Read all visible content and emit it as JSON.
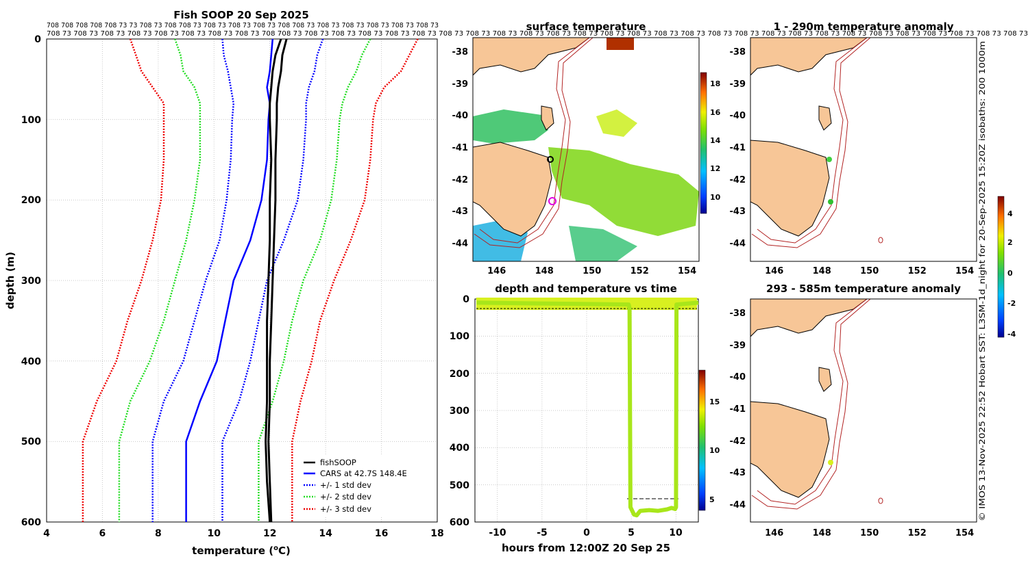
{
  "colors": {
    "land": "#f7c697",
    "coast": "#000000",
    "isobath": "#b22222",
    "grid": "#c8c8c8",
    "cars": "#0000ff",
    "std1": "#0000ff",
    "std2": "#22dd22",
    "std3": "#ee0000",
    "fish": "#000000",
    "dtline": "#a8e61a"
  },
  "top_strip": {
    "row1": "708 708 708 708 708 73 73 708 73 708 708 73 708 73 708 73 708 73 708 708 73 708 73 708 73 708 73 708 73 708 73",
    "row2": "708 73 708 73 708 73 708 73 708 73 708 73 708 73 708 73 708 708 73 708 73 708 73 708 73 708 73 708 73 708 73 708 73 708 73 708 73 708 73 708 73 708 73 708 73 708 73 708 73 708 73 708 73 708 73 708 73 708 73 708 73 708 73 708 73 708 73 708 73 708 73 708 73"
  },
  "side_text": "© IMOS 13-Nov-2025 22:52 Hobart SST: L3SM-1d_night for 20-Sep-2025 15:20Z isobaths: 200  1000m",
  "chart_data": [
    {
      "id": "profile",
      "type": "line",
      "title": "Fish SOOP 20 Sep 2025",
      "xlabel": "temperature (",
      "xlabel_sup": "o",
      "xlabel_end": "C)",
      "ylabel": "depth (m)",
      "xlim": [
        4,
        18
      ],
      "ylim": [
        600,
        0
      ],
      "xticks": [
        "4",
        "6",
        "8",
        "10",
        "12",
        "14",
        "16",
        "18"
      ],
      "yticks": [
        "0",
        "100",
        "200",
        "300",
        "400",
        "500",
        "600"
      ],
      "legend": [
        "fishSOOP",
        "CARS at 42.7S 148.4E",
        "+/- 1 std dev",
        "+/- 2 std dev",
        "+/- 3 std dev"
      ],
      "depths": [
        0,
        20,
        40,
        60,
        80,
        100,
        150,
        200,
        250,
        300,
        350,
        400,
        450,
        500,
        550,
        600
      ],
      "series": [
        {
          "name": "CARS at 42.7S 148.4E",
          "style": "cars",
          "values": [
            12.1,
            12.05,
            12.0,
            11.9,
            12.0,
            11.95,
            11.9,
            11.7,
            11.3,
            10.7,
            10.4,
            10.1,
            9.5,
            9.0,
            9.0,
            9.0
          ]
        },
        {
          "name": "-1 std",
          "style": "std1",
          "values": [
            10.3,
            10.35,
            10.5,
            10.6,
            10.7,
            10.65,
            10.6,
            10.45,
            10.2,
            9.7,
            9.3,
            8.9,
            8.2,
            7.8,
            7.8,
            7.8
          ]
        },
        {
          "name": "+1 std",
          "style": "std1",
          "values": [
            13.9,
            13.7,
            13.6,
            13.4,
            13.3,
            13.3,
            13.2,
            13.0,
            12.5,
            11.9,
            11.6,
            11.3,
            10.9,
            10.3,
            10.3,
            10.3
          ]
        },
        {
          "name": "-2 std",
          "style": "std2",
          "values": [
            8.6,
            8.8,
            8.9,
            9.3,
            9.5,
            9.5,
            9.5,
            9.3,
            9.0,
            8.6,
            8.2,
            7.7,
            7.0,
            6.6,
            6.6,
            6.6
          ]
        },
        {
          "name": "+2 std",
          "style": "std2",
          "values": [
            15.6,
            15.3,
            15.1,
            14.8,
            14.6,
            14.5,
            14.4,
            14.2,
            13.8,
            13.2,
            12.8,
            12.5,
            12.1,
            11.6,
            11.6,
            11.6
          ]
        },
        {
          "name": "-3 std",
          "style": "std3",
          "values": [
            7.0,
            7.2,
            7.4,
            7.8,
            8.2,
            8.2,
            8.2,
            8.1,
            7.8,
            7.4,
            6.9,
            6.5,
            5.8,
            5.3,
            5.3,
            5.3
          ]
        },
        {
          "name": "+3 std",
          "style": "std3",
          "values": [
            17.3,
            17.0,
            16.7,
            16.1,
            15.8,
            15.7,
            15.6,
            15.4,
            14.9,
            14.3,
            13.8,
            13.5,
            13.1,
            12.8,
            12.8,
            12.8
          ]
        },
        {
          "name": "fishSOOP",
          "style": "fish",
          "values": [
            12.4,
            12.2,
            12.1,
            12.05,
            12.0,
            12.0,
            12.05,
            12.0,
            12.0,
            11.95,
            11.9,
            11.9,
            11.9,
            11.85,
            11.9,
            12.0
          ]
        },
        {
          "name": "fishSOOP",
          "style": "fish",
          "values": [
            12.6,
            12.45,
            12.4,
            12.3,
            12.25,
            12.25,
            12.2,
            12.2,
            12.15,
            12.1,
            12.05,
            12.0,
            12.0,
            11.95,
            12.0,
            12.05
          ]
        }
      ]
    },
    {
      "id": "sst",
      "type": "heatmap",
      "title": "surface temperature",
      "xticks": [
        "146",
        "148",
        "150",
        "152",
        "154"
      ],
      "yticks": [
        "-38",
        "-39",
        "-40",
        "-41",
        "-42",
        "-43",
        "-44"
      ],
      "colorbar": {
        "min": 9,
        "max": 19,
        "ticks": [
          "10",
          "12",
          "14",
          "16",
          "18"
        ]
      },
      "xlim": [
        145,
        154.5
      ],
      "ylim": [
        -44.6,
        -37.6
      ]
    },
    {
      "id": "dt",
      "type": "scatter",
      "title": "depth and temperature vs time",
      "xlabel": "hours from 12:00Z 20 Sep 25",
      "xticks": [
        "-10",
        "-5",
        "0",
        "5",
        "10"
      ],
      "yticks": [
        "0",
        "100",
        "200",
        "300",
        "400",
        "500",
        "600"
      ],
      "xlim": [
        -12.5,
        12.5
      ],
      "ylim": [
        600,
        0
      ],
      "track_x": [
        -12.3,
        4.7,
        4.8,
        4.9,
        5.3,
        5.6,
        6.0,
        7.0,
        8.0,
        9.0,
        9.5,
        9.9,
        10.0,
        10.05,
        12.5
      ],
      "track_y": [
        10,
        15,
        25,
        560,
        580,
        582,
        570,
        568,
        570,
        566,
        562,
        565,
        560,
        15,
        10
      ],
      "colorbar": {
        "min": 4,
        "max": 19,
        "ticks": [
          "5",
          "10",
          "15"
        ]
      }
    },
    {
      "id": "anom1",
      "type": "heatmap",
      "title": "1 - 290m temperature anomaly",
      "xticks": [
        "146",
        "148",
        "150",
        "152",
        "154"
      ],
      "yticks": [
        "-38",
        "-39",
        "-40",
        "-41",
        "-42",
        "-43",
        "-44"
      ],
      "xlim": [
        145,
        154.5
      ],
      "ylim": [
        -44.6,
        -37.6
      ]
    },
    {
      "id": "anom2",
      "type": "heatmap",
      "title": "293 - 585m temperature anomaly",
      "xticks": [
        "146",
        "148",
        "150",
        "152",
        "154"
      ],
      "yticks": [
        "-38",
        "-39",
        "-40",
        "-41",
        "-42",
        "-43",
        "-44"
      ],
      "colorbar": {
        "min": -4.5,
        "max": 5,
        "ticks": [
          "4",
          "2",
          "0",
          "-2",
          "-4"
        ]
      },
      "xlim": [
        145,
        154.5
      ],
      "ylim": [
        -44.6,
        -37.6
      ]
    }
  ]
}
